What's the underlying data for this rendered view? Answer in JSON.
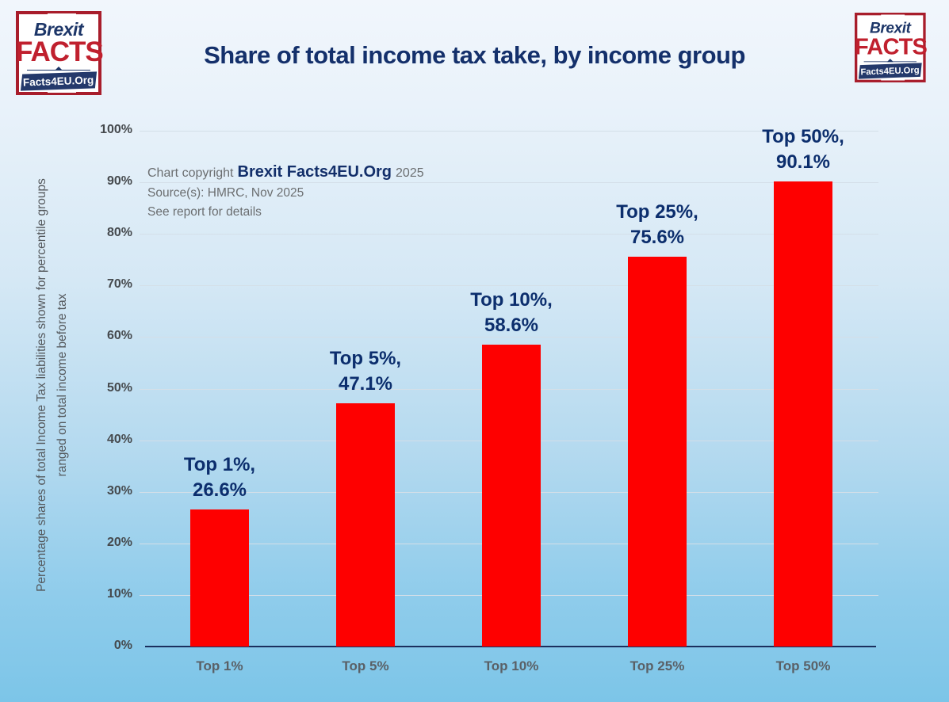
{
  "title": "Share of total income tax take, by income group",
  "logo": {
    "top": "Brexit",
    "middle": "FACTS",
    "banner": "Facts4EU.Org"
  },
  "copyright": {
    "prefix": "Chart copyright",
    "brand": "Brexit Facts4EU.Org",
    "year": "2025",
    "source": "Source(s): HMRC, Nov 2025",
    "note": "See report for details"
  },
  "y_axis": {
    "title_line1": "Percentage shares of total Income Tax liabilities shown for percentile groups",
    "title_line2": "ranged on total income before tax",
    "tick_suffix": "%"
  },
  "chart_data": {
    "type": "bar",
    "title": "Share of total income tax take, by income group",
    "categories": [
      "Top 1%",
      "Top 5%",
      "Top 10%",
      "Top 25%",
      "Top 50%"
    ],
    "values": [
      26.6,
      47.1,
      58.6,
      75.6,
      90.1
    ],
    "bar_labels": [
      {
        "line1": "Top 1%,",
        "line2": "26.6%"
      },
      {
        "line1": "Top 5%,",
        "line2": "47.1%"
      },
      {
        "line1": "Top 10%,",
        "line2": "58.6%"
      },
      {
        "line1": "Top 25%,",
        "line2": "75.6%"
      },
      {
        "line1": "Top 50%,",
        "line2": "90.1%"
      }
    ],
    "xlabel": "",
    "ylabel": "Percentage shares of total Income Tax liabilities shown for percentile groups ranged on total income before tax",
    "ylim": [
      0,
      100
    ],
    "ytick_step": 10,
    "grid": true,
    "legend": false,
    "bar_color": "#fe0000"
  },
  "colors": {
    "bar": "#fe0000",
    "title_navy": "#14306b",
    "bar_label_navy": "#0c2e6d",
    "logo_red": "#c0202e",
    "logo_navy": "#1d3668",
    "bg_top": "#f1f6fc",
    "bg_bottom": "#7cc5e8"
  }
}
